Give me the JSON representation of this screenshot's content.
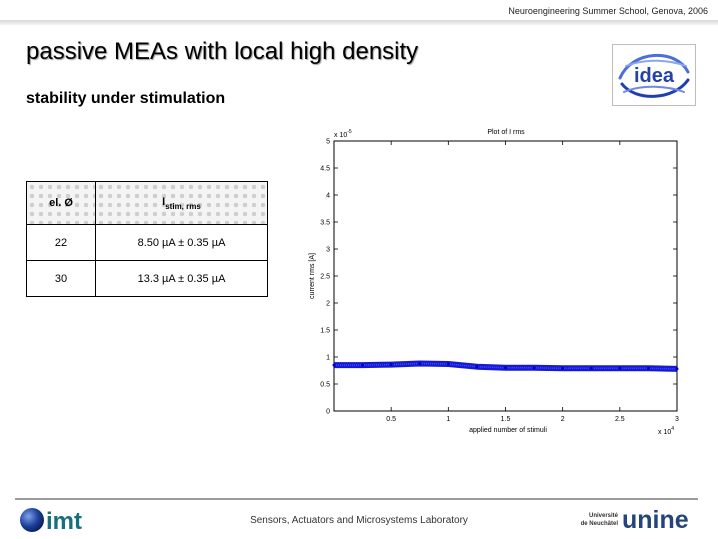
{
  "header": {
    "event": "Neuroengineering Summer School, Genova, 2006"
  },
  "slide": {
    "title": "passive MEAs with local high density",
    "subtitle": "stability under stimulation"
  },
  "logos": {
    "idea": "idea",
    "imt": "imt",
    "unine_top": "Université",
    "unine_bottom": "de Neuchâtel",
    "unine_mark": "unine"
  },
  "table": {
    "header": {
      "col1": "el. Ø",
      "col2_main": "I",
      "col2_sub": "stim, rms"
    },
    "rows": [
      {
        "el": "22",
        "current": "8.50 µA ± 0.35 µA"
      },
      {
        "el": "30",
        "current": "13.3 µA ± 0.35 µA"
      }
    ]
  },
  "footer": {
    "lab": "Sensors, Actuators and Microsystems Laboratory"
  },
  "chart_data": {
    "type": "line",
    "title": "Plot of I rms",
    "xlabel": "applied number of stimuli",
    "ylabel": "current rms [A]",
    "x_multiplier": "x 10",
    "x_multiplier_exp": "4",
    "y_multiplier": "x 10",
    "y_multiplier_exp": "-5",
    "xlim": [
      0,
      3
    ],
    "ylim": [
      0,
      5
    ],
    "x_ticks": [
      "0.5",
      "1",
      "1.5",
      "2",
      "2.5",
      "3"
    ],
    "y_ticks": [
      "0",
      "0.5",
      "1",
      "1.5",
      "2",
      "2.5",
      "3",
      "3.5",
      "4",
      "4.5",
      "5"
    ],
    "series": [
      {
        "color": "#0000cc",
        "x": [
          0,
          0.25,
          0.5,
          0.75,
          1,
          1.25,
          1.5,
          1.75,
          2,
          2.25,
          2.5,
          2.75,
          3
        ],
        "y": [
          0.85,
          0.85,
          0.86,
          0.88,
          0.87,
          0.82,
          0.8,
          0.8,
          0.79,
          0.79,
          0.79,
          0.79,
          0.78
        ]
      }
    ]
  }
}
